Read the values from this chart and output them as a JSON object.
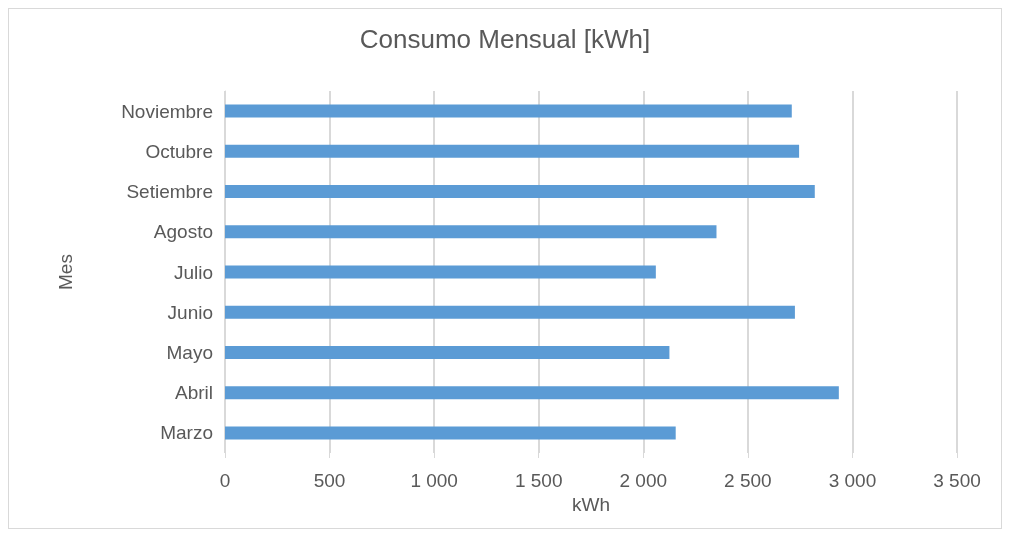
{
  "chart_data": {
    "type": "bar",
    "orientation": "horizontal",
    "title": "Consumo Mensual [kWh]",
    "xlabel": "kWh",
    "ylabel": "Mes",
    "categories": [
      "Noviembre",
      "Octubre",
      "Setiembre",
      "Agosto",
      "Julio",
      "Junio",
      "Mayo",
      "Abril",
      "Marzo"
    ],
    "values": [
      2710,
      2745,
      2820,
      2350,
      2060,
      2725,
      2125,
      2935,
      2155
    ],
    "color": "#5b9bd5",
    "xlim": [
      0,
      3500
    ],
    "xticks": [
      0,
      500,
      1000,
      1500,
      2000,
      2500,
      3000,
      3500
    ],
    "grid": "x"
  }
}
